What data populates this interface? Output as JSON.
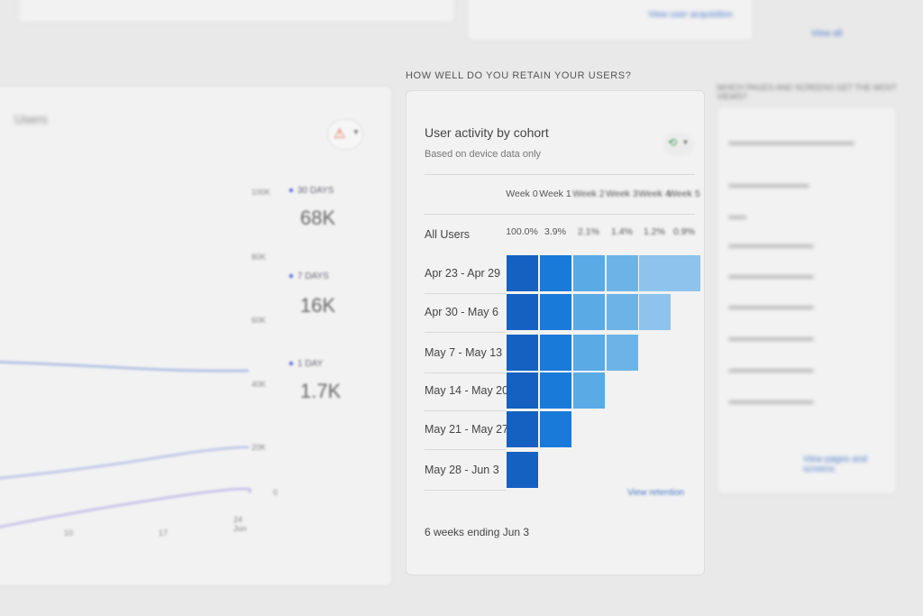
{
  "top": {
    "link_left": "View user acquisition",
    "link_right": "View all"
  },
  "left_panel": {
    "title": "Users",
    "y_ticks": [
      "100K",
      "80K",
      "60K",
      "40K",
      "20K",
      "0"
    ],
    "x_ticks": [
      "10",
      "17",
      "24 Jun"
    ],
    "legend": [
      {
        "label": "30 DAYS",
        "value": "68K"
      },
      {
        "label": "7 DAYS",
        "value": "16K"
      },
      {
        "label": "1 DAY",
        "value": "1.7K"
      }
    ],
    "warning_icon": "warning-triangle-icon"
  },
  "retention": {
    "section_title": "HOW WELL DO YOU RETAIN YOUR USERS?",
    "card_title": "User activity by cohort",
    "subtitle": "Based on device data only",
    "columns": [
      "Week 0",
      "Week 1",
      "Week 2",
      "Week 3",
      "Week 4",
      "Week 5"
    ],
    "all_users_label": "All Users",
    "all_users": [
      "100.0%",
      "3.9%",
      "2.1%",
      "1.4%",
      "1.2%",
      "0.9%"
    ],
    "rows": [
      "Apr 23 - Apr 29",
      "Apr 30 - May 6",
      "May 7 - May 13",
      "May 14 - May 20",
      "May 21 - May 27",
      "May 28 - Jun 3"
    ],
    "colors": [
      "#1461c2",
      "#1a7ad9",
      "#5aaae6",
      "#6cb4e8",
      "#8dc3ec",
      "#8dc3ec"
    ],
    "footer": "6 weeks ending Jun 3",
    "link": "View retention"
  },
  "right_panel": {
    "title": "WHICH PAGES AND SCREENS GET THE MOST VIEWS?",
    "link": "View pages and screens"
  }
}
